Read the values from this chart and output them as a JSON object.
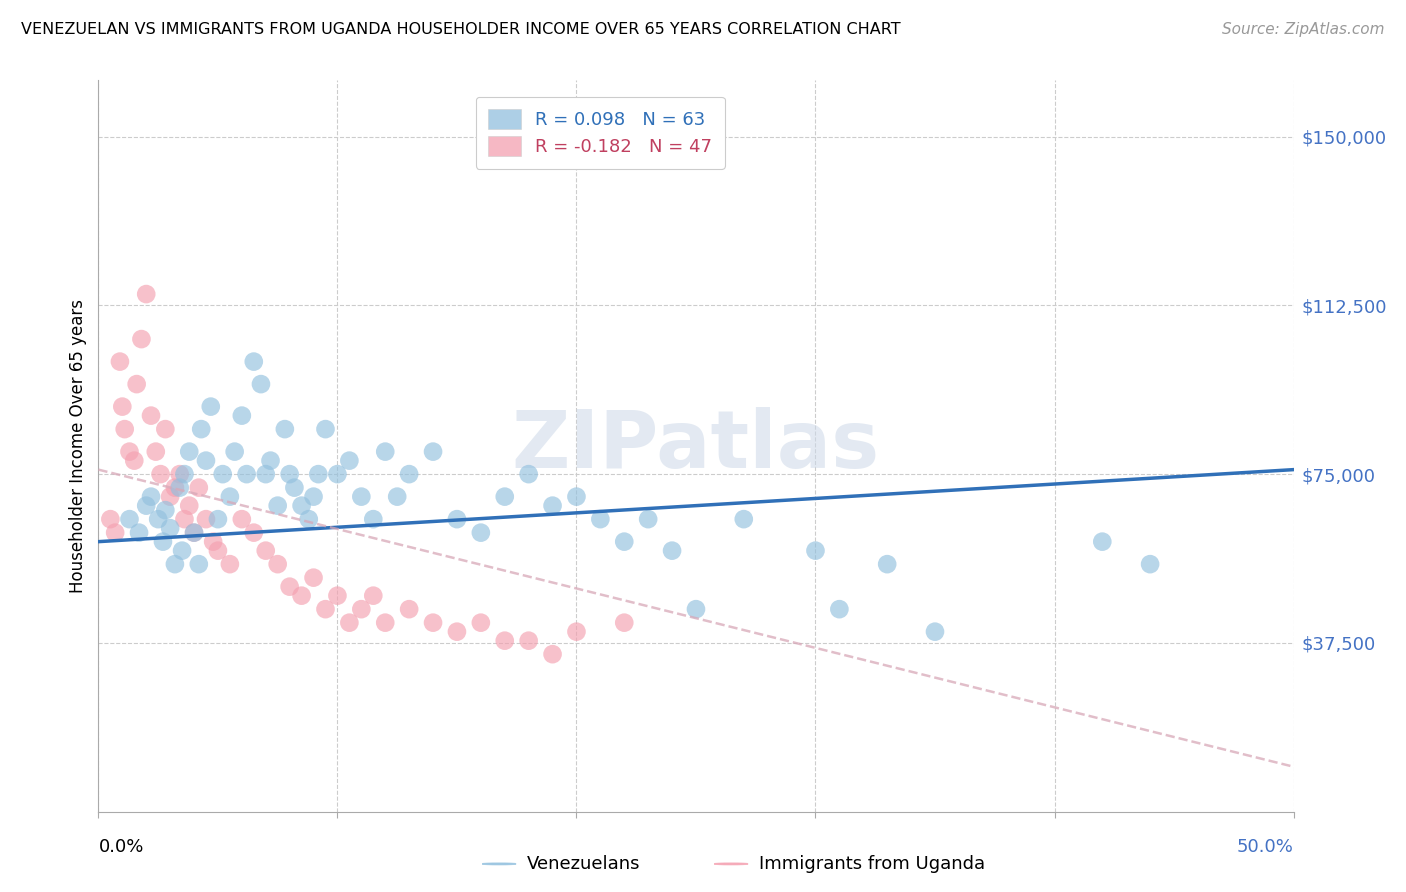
{
  "title": "VENEZUELAN VS IMMIGRANTS FROM UGANDA HOUSEHOLDER INCOME OVER 65 YEARS CORRELATION CHART",
  "source": "Source: ZipAtlas.com",
  "ylabel": "Householder Income Over 65 years",
  "ytick_labels": [
    "$37,500",
    "$75,000",
    "$112,500",
    "$150,000"
  ],
  "ytick_values": [
    37500,
    75000,
    112500,
    150000
  ],
  "ymin": 0,
  "ymax": 162500,
  "xmin": 0.0,
  "xmax": 0.5,
  "watermark_text": "ZIPatlas",
  "venezuelan_color": "#92c0de",
  "uganda_color": "#f4a0b0",
  "venezuelan_line_color": "#3070b8",
  "uganda_line_color": "#d8a8b8",
  "venezuelan_scatter_x": [
    0.013,
    0.017,
    0.02,
    0.022,
    0.025,
    0.027,
    0.028,
    0.03,
    0.032,
    0.034,
    0.035,
    0.036,
    0.038,
    0.04,
    0.042,
    0.043,
    0.045,
    0.047,
    0.05,
    0.052,
    0.055,
    0.057,
    0.06,
    0.062,
    0.065,
    0.068,
    0.07,
    0.072,
    0.075,
    0.078,
    0.08,
    0.082,
    0.085,
    0.088,
    0.09,
    0.092,
    0.095,
    0.1,
    0.105,
    0.11,
    0.115,
    0.12,
    0.125,
    0.13,
    0.14,
    0.15,
    0.16,
    0.17,
    0.18,
    0.19,
    0.2,
    0.21,
    0.22,
    0.23,
    0.24,
    0.25,
    0.27,
    0.3,
    0.31,
    0.33,
    0.35,
    0.42,
    0.44
  ],
  "venezuelan_scatter_y": [
    65000,
    62000,
    68000,
    70000,
    65000,
    60000,
    67000,
    63000,
    55000,
    72000,
    58000,
    75000,
    80000,
    62000,
    55000,
    85000,
    78000,
    90000,
    65000,
    75000,
    70000,
    80000,
    88000,
    75000,
    100000,
    95000,
    75000,
    78000,
    68000,
    85000,
    75000,
    72000,
    68000,
    65000,
    70000,
    75000,
    85000,
    75000,
    78000,
    70000,
    65000,
    80000,
    70000,
    75000,
    80000,
    65000,
    62000,
    70000,
    75000,
    68000,
    70000,
    65000,
    60000,
    65000,
    58000,
    45000,
    65000,
    58000,
    45000,
    55000,
    40000,
    60000,
    55000
  ],
  "uganda_scatter_x": [
    0.005,
    0.007,
    0.009,
    0.01,
    0.011,
    0.013,
    0.015,
    0.016,
    0.018,
    0.02,
    0.022,
    0.024,
    0.026,
    0.028,
    0.03,
    0.032,
    0.034,
    0.036,
    0.038,
    0.04,
    0.042,
    0.045,
    0.048,
    0.05,
    0.055,
    0.06,
    0.065,
    0.07,
    0.075,
    0.08,
    0.085,
    0.09,
    0.095,
    0.1,
    0.105,
    0.11,
    0.115,
    0.12,
    0.13,
    0.14,
    0.15,
    0.16,
    0.17,
    0.18,
    0.19,
    0.2,
    0.22
  ],
  "uganda_scatter_y": [
    65000,
    62000,
    100000,
    90000,
    85000,
    80000,
    78000,
    95000,
    105000,
    115000,
    88000,
    80000,
    75000,
    85000,
    70000,
    72000,
    75000,
    65000,
    68000,
    62000,
    72000,
    65000,
    60000,
    58000,
    55000,
    65000,
    62000,
    58000,
    55000,
    50000,
    48000,
    52000,
    45000,
    48000,
    42000,
    45000,
    48000,
    42000,
    45000,
    42000,
    40000,
    42000,
    38000,
    38000,
    35000,
    40000,
    42000
  ],
  "venezuelan_trend_x": [
    0.0,
    0.5
  ],
  "venezuelan_trend_y": [
    60000,
    76000
  ],
  "uganda_trend_x": [
    0.0,
    0.5
  ],
  "uganda_trend_y": [
    76000,
    10000
  ],
  "legend_label_1": "R = 0.098   N = 63",
  "legend_label_2": "R = -0.182   N = 47",
  "legend_color_1": "#92c0de",
  "legend_color_2": "#f4a0b0",
  "legend_text_color_1": "#3070b8",
  "legend_text_color_2": "#c04060",
  "bottom_legend_label_1": "Venezuelans",
  "bottom_legend_label_2": "Immigrants from Uganda",
  "title_fontsize": 11.5,
  "source_fontsize": 11,
  "axis_label_fontsize": 12,
  "tick_fontsize": 13,
  "ylabel_fontsize": 12
}
